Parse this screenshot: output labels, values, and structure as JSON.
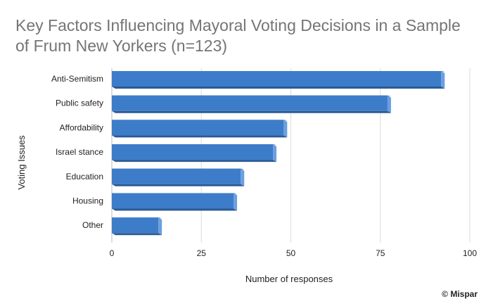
{
  "chart_data": {
    "type": "bar",
    "orientation": "horizontal",
    "title_lines": [
      "Key Factors Influencing Mayoral Voting Decisions in a Sample",
      "of Frum New Yorkers (n=123)"
    ],
    "xlabel": "Number of responses",
    "ylabel": "Voting Issues",
    "categories": [
      "Anti-Semitism",
      "Public safety",
      "Affordability",
      "Israel stance",
      "Education",
      "Housing",
      "Other"
    ],
    "values": [
      92,
      77,
      48,
      45,
      36,
      34,
      13
    ],
    "xlim": [
      0,
      100
    ],
    "xticks": [
      "0",
      "25",
      "50",
      "75",
      "100"
    ],
    "grid": true,
    "bar_color": "#3d7cc9",
    "bar_top_color": "#2a5a94",
    "bar_side_color": "#6a9fe0"
  },
  "credit": "© Mispar"
}
